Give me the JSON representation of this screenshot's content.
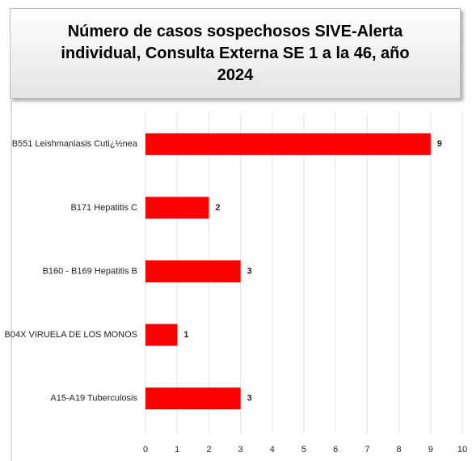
{
  "chart_data": {
    "type": "barh",
    "title": "Número de casos sospechosos SIVE-Alerta individual, Consulta Externa SE 1 a la 46, año 2024",
    "categories": [
      "B551 Leishmaniasis Cuti¿½nea",
      "B171 Hepatitis C",
      "B160 - B169 Hepatitis B",
      "B04X VIRUELA DE LOS MONOS",
      "A15-A19 Tuberculosis"
    ],
    "values": [
      9,
      2,
      3,
      1,
      3
    ],
    "color": "#ff0000",
    "xlim": [
      0,
      10
    ],
    "xticks": [
      0,
      1,
      2,
      3,
      4,
      5,
      6,
      7,
      8,
      9,
      10
    ],
    "grid": true
  }
}
